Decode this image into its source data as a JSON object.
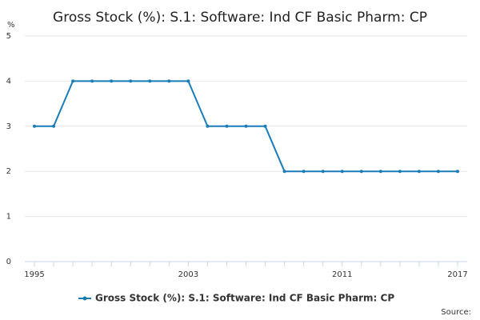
{
  "chart_data": {
    "type": "line",
    "title": "Gross Stock (%): S.1: Software: Ind CF Basic Pharm: CP",
    "y_label": "%",
    "source": "Source:",
    "x": [
      1995,
      1996,
      1997,
      1998,
      1999,
      2000,
      2001,
      2002,
      2003,
      2004,
      2005,
      2006,
      2007,
      2008,
      2009,
      2010,
      2011,
      2012,
      2013,
      2014,
      2015,
      2016,
      2017
    ],
    "series": [
      {
        "name": "Gross Stock (%): S.1: Software: Ind CF Basic Pharm: CP",
        "color": "#1a7db8",
        "values": [
          3,
          3,
          4,
          4,
          4,
          4,
          4,
          4,
          4,
          3,
          3,
          3,
          3,
          2,
          2,
          2,
          2,
          2,
          2,
          2,
          2,
          2,
          2
        ]
      }
    ],
    "xlim": [
      1994.5,
      2017.5
    ],
    "xticks": [
      1995,
      2003,
      2011,
      2017
    ],
    "ylim": [
      0,
      5
    ],
    "yticks": [
      0,
      1,
      2,
      3,
      4,
      5
    ],
    "grid": true
  }
}
